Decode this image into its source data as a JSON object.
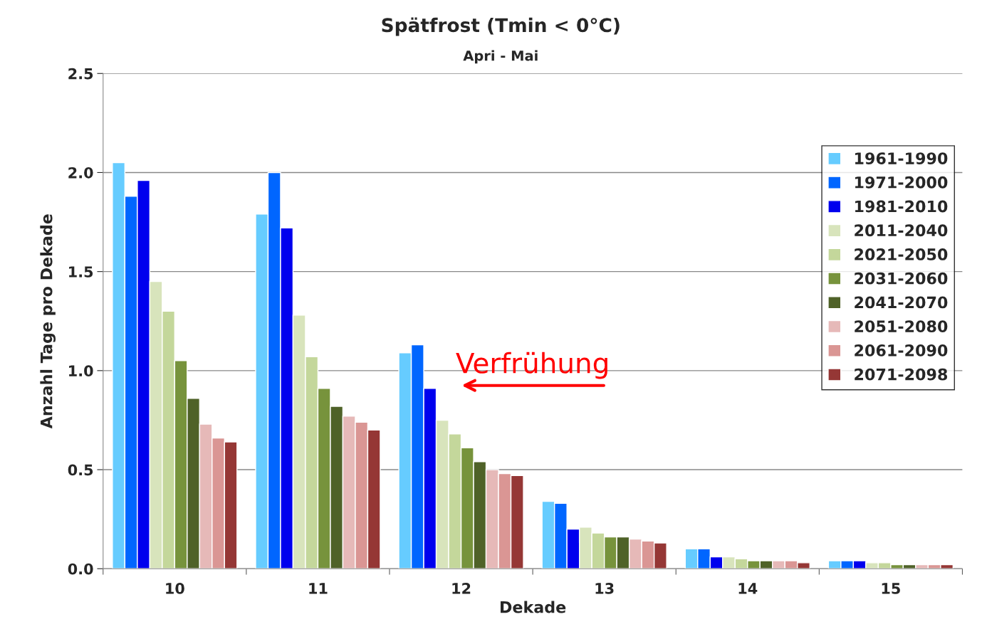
{
  "chart_data": {
    "type": "bar",
    "title": "Spätfrost (Tmin < 0°C)",
    "subtitle": "Apri - Mai",
    "xlabel": "Dekade",
    "ylabel": "Anzahl Tage pro Dekade",
    "categories": [
      "10",
      "11",
      "12",
      "13",
      "14",
      "15"
    ],
    "series": [
      {
        "name": "1961-1990",
        "color": "#66ccff",
        "values": [
          2.05,
          1.79,
          1.09,
          0.34,
          0.1,
          0.04
        ]
      },
      {
        "name": "1971-2000",
        "color": "#0066ff",
        "values": [
          1.88,
          2.0,
          1.13,
          0.33,
          0.1,
          0.04
        ]
      },
      {
        "name": "1981-2010",
        "color": "#0000ee",
        "values": [
          1.96,
          1.72,
          0.91,
          0.2,
          0.06,
          0.04
        ]
      },
      {
        "name": "2011-2040",
        "color": "#d8e4bc",
        "values": [
          1.45,
          1.28,
          0.75,
          0.21,
          0.06,
          0.03
        ]
      },
      {
        "name": "2021-2050",
        "color": "#c4d79b",
        "values": [
          1.3,
          1.07,
          0.68,
          0.18,
          0.05,
          0.03
        ]
      },
      {
        "name": "2031-2060",
        "color": "#77933c",
        "values": [
          1.05,
          0.91,
          0.61,
          0.16,
          0.04,
          0.02
        ]
      },
      {
        "name": "2041-2070",
        "color": "#4f6228",
        "values": [
          0.86,
          0.82,
          0.54,
          0.16,
          0.04,
          0.02
        ]
      },
      {
        "name": "2051-2080",
        "color": "#e6b9b8",
        "values": [
          0.73,
          0.77,
          0.5,
          0.15,
          0.04,
          0.02
        ]
      },
      {
        "name": "2061-2090",
        "color": "#da9694",
        "values": [
          0.66,
          0.74,
          0.48,
          0.14,
          0.04,
          0.02
        ]
      },
      {
        "name": "2071-2098",
        "color": "#953735",
        "values": [
          0.64,
          0.7,
          0.47,
          0.13,
          0.03,
          0.02
        ]
      }
    ],
    "annotations": [
      "Verfrühung"
    ],
    "ylim": [
      0,
      2.5
    ],
    "yticks": [
      {
        "value": 0,
        "label": "0.0"
      },
      0.5,
      {
        "value": 1,
        "label": "1.0"
      },
      1.5,
      {
        "value": 2,
        "label": "2.0"
      },
      2.5
    ],
    "grid": "y",
    "legend": "top right"
  }
}
